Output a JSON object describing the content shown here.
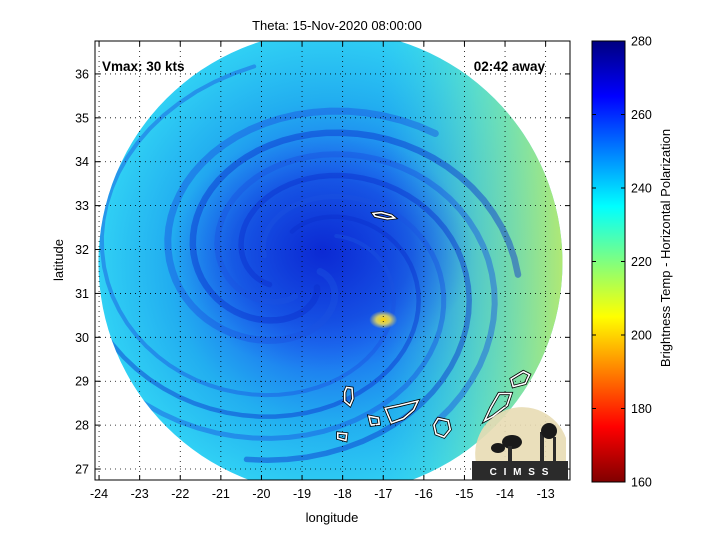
{
  "title": "Theta: 15-Nov-2020 08:00:00",
  "xlabel": "longitude",
  "ylabel": "latitude",
  "vmax_label": "Vmax: 30 kts",
  "time_label": "02:42 away",
  "colorbar_label": "Brightness Temp - Horizontal Polarization",
  "logo_text": "C I M S S",
  "chart_data": {
    "type": "heatmap",
    "title": "Theta: 15-Nov-2020 08:00:00",
    "xlabel": "longitude",
    "ylabel": "latitude",
    "xlim": [
      -24.1,
      -12.4
    ],
    "ylim": [
      26.75,
      36.75
    ],
    "xticks": [
      -24,
      -23,
      -22,
      -21,
      -20,
      -19,
      -18,
      -17,
      -16,
      -15,
      -14,
      -13
    ],
    "xtick_labels": [
      "-24",
      "-23",
      "-22",
      "-21",
      "-20",
      "-19",
      "-18",
      "-17",
      "-16",
      "-15",
      "-14",
      "-13"
    ],
    "yticks": [
      27,
      28,
      29,
      30,
      31,
      32,
      33,
      34,
      35,
      36
    ],
    "ytick_labels": [
      "27",
      "28",
      "29",
      "30",
      "31",
      "32",
      "33",
      "34",
      "35",
      "36"
    ],
    "grid": true,
    "colorbar": {
      "label": "Brightness Temp - Horizontal Polarization",
      "range": [
        160,
        280
      ],
      "ticks": [
        160,
        180,
        200,
        220,
        240,
        260,
        280
      ],
      "tick_labels": [
        "160",
        "180",
        "200",
        "220",
        "240",
        "260",
        "280"
      ]
    },
    "image_center": {
      "lon": -18.3,
      "lat": 31.7
    },
    "storm_center": {
      "lon": -19.0,
      "lat": 31.5
    },
    "warm_spot": {
      "lon": -17.0,
      "lat": 30.4
    },
    "islands": [
      {
        "name": "island-madeira",
        "lon": [
          -17.25,
          -17.05,
          -16.8,
          -16.72,
          -16.9,
          -17.2,
          -17.25
        ],
        "lat": [
          32.82,
          32.84,
          32.78,
          32.72,
          32.7,
          32.76,
          32.82
        ]
      },
      {
        "name": "island-la-palma",
        "lon": [
          -17.9,
          -17.77,
          -17.75,
          -17.82,
          -17.95,
          -17.95,
          -17.9
        ],
        "lat": [
          28.86,
          28.84,
          28.6,
          28.45,
          28.55,
          28.75,
          28.86
        ]
      },
      {
        "name": "island-tenerife",
        "lon": [
          -16.95,
          -16.6,
          -16.15,
          -16.25,
          -16.5,
          -16.8,
          -16.95
        ],
        "lat": [
          28.38,
          28.45,
          28.55,
          28.35,
          28.15,
          28.05,
          28.38
        ]
      },
      {
        "name": "island-gomera",
        "lon": [
          -17.35,
          -17.12,
          -17.1,
          -17.3,
          -17.35
        ],
        "lat": [
          28.2,
          28.16,
          28.02,
          28.0,
          28.2
        ]
      },
      {
        "name": "island-gran-canaria",
        "lon": [
          -15.65,
          -15.4,
          -15.35,
          -15.5,
          -15.7,
          -15.75,
          -15.65
        ],
        "lat": [
          28.15,
          28.1,
          27.9,
          27.73,
          27.8,
          28.0,
          28.15
        ]
      },
      {
        "name": "island-el-hierro",
        "lon": [
          -18.12,
          -17.9,
          -17.92,
          -18.12,
          -18.12
        ],
        "lat": [
          27.82,
          27.8,
          27.65,
          27.7,
          27.82
        ]
      },
      {
        "name": "island-fuerteventura",
        "lon": [
          -14.15,
          -13.85,
          -13.95,
          -14.3,
          -14.5,
          -14.35,
          -14.15
        ],
        "lat": [
          28.72,
          28.72,
          28.45,
          28.2,
          28.1,
          28.4,
          28.72
        ]
      },
      {
        "name": "island-lanzarote",
        "lon": [
          -13.55,
          -13.4,
          -13.5,
          -13.8,
          -13.85,
          -13.55
        ],
        "lat": [
          29.22,
          29.15,
          28.95,
          28.88,
          29.05,
          29.22
        ]
      }
    ]
  }
}
